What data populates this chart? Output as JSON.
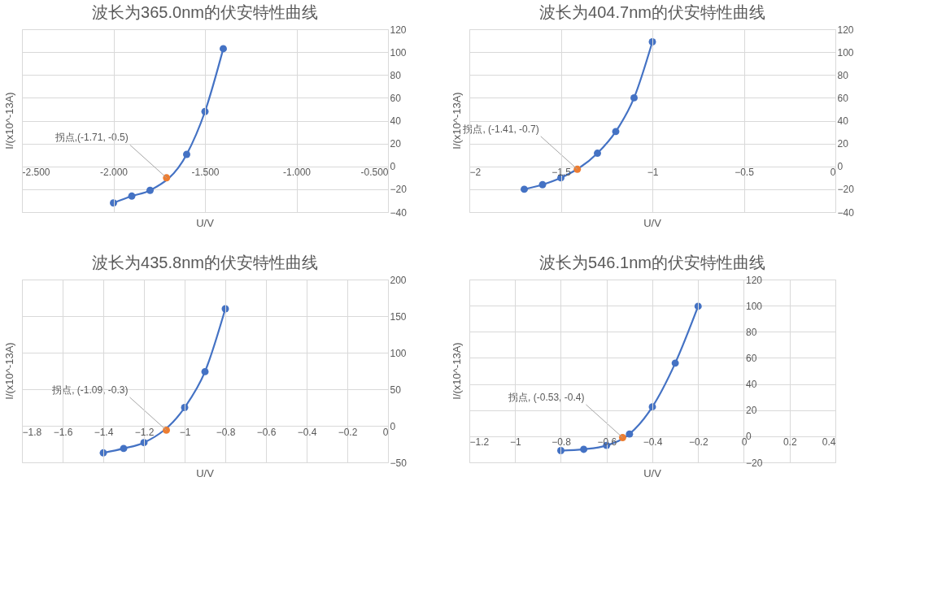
{
  "chart_data": [
    {
      "type": "line",
      "title": "波长为365.0nm的伏安特性曲线",
      "xlabel": "U/V",
      "ylabel": "I/(x10^-13A)",
      "xlim": [
        -2.5,
        -0.5
      ],
      "xticks": [
        {
          "value": -2.5,
          "label": "-2.500"
        },
        {
          "value": -2.0,
          "label": "-2.000"
        },
        {
          "value": -1.5,
          "label": "-1.500"
        },
        {
          "value": -1.0,
          "label": "-1.000"
        },
        {
          "value": -0.5,
          "label": "-0.500"
        }
      ],
      "ylim": [
        -40,
        120
      ],
      "yticks": [
        -40,
        -20,
        0,
        20,
        40,
        60,
        80,
        100,
        120
      ],
      "grid": true,
      "marker": "circle",
      "series": [
        {
          "type": "line",
          "color": "#4472c4",
          "x": [
            -2.0,
            -1.9,
            -1.8,
            -1.6,
            -1.5,
            -1.4
          ],
          "values": [
            -32,
            -26,
            -21,
            10.5,
            48,
            103
          ]
        },
        {
          "type": "scatter",
          "color": "#ed7d31",
          "x": [
            -1.71
          ],
          "values": [
            -10
          ]
        }
      ],
      "annotations": [
        {
          "text": "拐点,(-1.71, -0.5)",
          "x": -1.71,
          "y": -10
        }
      ]
    },
    {
      "type": "line",
      "title": "波长为404.7nm的伏安特性曲线",
      "xlabel": "U/V",
      "ylabel": "I/(x10^-13A)",
      "xlim": [
        -2,
        0
      ],
      "xticks": [
        -2,
        -1.5,
        -1,
        -0.5,
        0
      ],
      "ylim": [
        -40,
        120
      ],
      "yticks": [
        -40,
        -20,
        0,
        20,
        40,
        60,
        80,
        100,
        120
      ],
      "grid": true,
      "marker": "circle",
      "series": [
        {
          "type": "line",
          "color": "#4472c4",
          "x": [
            -1.7,
            -1.6,
            -1.5,
            -1.3,
            -1.2,
            -1.1,
            -1.0
          ],
          "values": [
            -20,
            -16,
            -10,
            11.5,
            30.5,
            60,
            109
          ]
        },
        {
          "type": "scatter",
          "color": "#ed7d31",
          "x": [
            -1.41
          ],
          "values": [
            -2.5
          ]
        }
      ],
      "annotations": [
        {
          "text": "拐点, (-1.41, -0.7)",
          "x": -1.41,
          "y": -2.5
        }
      ]
    },
    {
      "type": "line",
      "title": "波长为435.8nm的伏安特性曲线",
      "xlabel": "U/V",
      "ylabel": "I/(x10^-13A)",
      "xlim": [
        -1.8,
        0
      ],
      "xticks": [
        -1.8,
        -1.6,
        -1.4,
        -1.2,
        -1,
        -0.8,
        -0.6,
        -0.4,
        -0.2,
        0
      ],
      "ylim": [
        -50,
        200
      ],
      "yticks": [
        -50,
        0,
        50,
        100,
        150,
        200
      ],
      "grid": true,
      "marker": "circle",
      "series": [
        {
          "type": "line",
          "color": "#4472c4",
          "x": [
            -1.4,
            -1.3,
            -1.2,
            -1.0,
            -0.9,
            -0.8
          ],
          "values": [
            -37,
            -31,
            -23,
            25,
            74,
            160
          ]
        },
        {
          "type": "scatter",
          "color": "#ed7d31",
          "x": [
            -1.09
          ],
          "values": [
            -6
          ]
        }
      ],
      "annotations": [
        {
          "text": "拐点, (-1.09, -0.3)",
          "x": -1.09,
          "y": -6
        }
      ]
    },
    {
      "type": "line",
      "title": "波长为546.1nm的伏安特性曲线",
      "xlabel": "U/V",
      "ylabel": "I/(x10^-13A)",
      "xlim": [
        -1.2,
        0.4
      ],
      "xticks": [
        -1.2,
        -1,
        -0.8,
        -0.6,
        -0.4,
        -0.2,
        0,
        0.2,
        0.4
      ],
      "ylim": [
        -20,
        120
      ],
      "yticks": [
        -20,
        0,
        20,
        40,
        60,
        80,
        100,
        120
      ],
      "grid": true,
      "marker": "circle",
      "series": [
        {
          "type": "line",
          "color": "#4472c4",
          "x": [
            -0.8,
            -0.7,
            -0.6,
            -0.5,
            -0.4,
            -0.3,
            -0.2
          ],
          "values": [
            -11,
            -10,
            -7,
            1.7,
            22.5,
            56,
            99.5
          ]
        },
        {
          "type": "scatter",
          "color": "#ed7d31",
          "x": [
            -0.53
          ],
          "values": [
            -1
          ]
        }
      ],
      "annotations": [
        {
          "text": "拐点, (-0.53, -0.4)",
          "x": -0.53,
          "y": -1
        }
      ]
    }
  ]
}
